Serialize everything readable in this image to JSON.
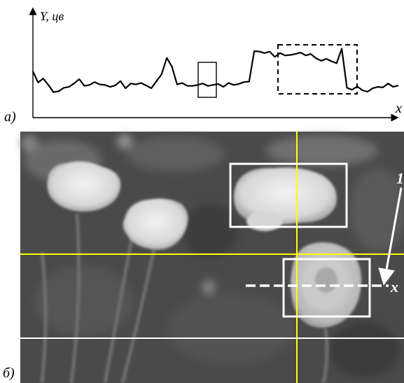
{
  "panel_a": {
    "label": "а)",
    "y_axis_label": "Y, цв",
    "x_axis_label": "x",
    "chart_data": {
      "type": "line",
      "title": "",
      "xlabel": "x",
      "ylabel": "Y, цв",
      "grid": false,
      "series": [
        {
          "values": [
            0.58,
            0.35,
            0.43,
            0.3,
            0.15,
            0.17,
            0.24,
            0.26,
            0.33,
            0.42,
            0.28,
            0.3,
            0.36,
            0.31,
            0.3,
            0.26,
            0.29,
            0.38,
            0.23,
            0.33,
            0.31,
            0.34,
            0.29,
            0.23,
            0.38,
            0.52,
            0.86,
            0.68,
            0.31,
            0.34,
            0.28,
            0.28,
            0.3,
            0.33,
            0.28,
            0.3,
            0.32,
            0.26,
            0.34,
            0.3,
            0.32,
            0.36,
            0.37,
            1.0,
            0.99,
            0.96,
            0.99,
            0.88,
            0.96,
            0.91,
            0.92,
            0.94,
            0.97,
            0.91,
            0.94,
            0.85,
            0.8,
            0.84,
            0.79,
            0.75,
            1.05,
            0.24,
            0.2,
            0.27,
            0.19,
            0.16,
            0.23,
            0.26,
            0.25,
            0.33,
            0.26,
            0.29
          ]
        }
      ],
      "regions": [
        {
          "style": "solid-box"
        },
        {
          "style": "dashed-box"
        }
      ]
    }
  },
  "panel_b": {
    "label": "б)",
    "scanline_label": "x",
    "pointer_label": "1"
  },
  "colors": {
    "yellow_lines": "#ffff00",
    "white_lines": "#ffffff",
    "ink": "#000000"
  }
}
